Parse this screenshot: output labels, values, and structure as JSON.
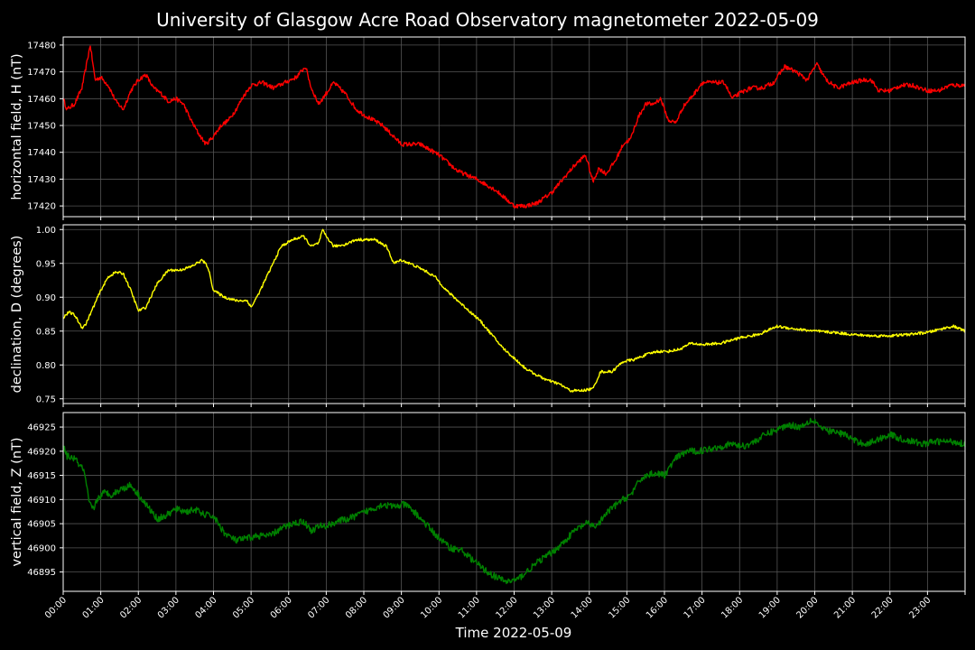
{
  "chart_data": {
    "type": "line",
    "title": "University of Glasgow Acre Road Observatory magnetometer 2022-05-09",
    "xlabel": "Time 2022-05-09",
    "x_unit": "hour",
    "xlim": [
      0,
      24
    ],
    "xticks": [
      "00:00",
      "01:00",
      "02:00",
      "03:00",
      "04:00",
      "05:00",
      "06:00",
      "07:00",
      "08:00",
      "09:00",
      "10:00",
      "11:00",
      "12:00",
      "13:00",
      "14:00",
      "15:00",
      "16:00",
      "17:00",
      "18:00",
      "19:00",
      "20:00",
      "21:00",
      "22:00",
      "23:00"
    ],
    "grid": true,
    "panels": [
      {
        "ylabel": "horizontal field, H (nT)",
        "color": "#ff0000",
        "ylim": [
          17416,
          17483
        ],
        "yticks": [
          17420,
          17430,
          17440,
          17450,
          17460,
          17470,
          17480
        ],
        "noise": 0.8,
        "x": [
          0,
          0.1,
          0.3,
          0.5,
          0.72,
          0.85,
          1.0,
          1.2,
          1.4,
          1.6,
          1.8,
          2.0,
          2.2,
          2.4,
          2.6,
          2.8,
          3.0,
          3.2,
          3.4,
          3.6,
          3.8,
          4.0,
          4.2,
          4.4,
          4.6,
          4.8,
          5.0,
          5.3,
          5.6,
          5.9,
          6.2,
          6.45,
          6.6,
          6.8,
          7.0,
          7.2,
          7.5,
          7.8,
          8.0,
          8.5,
          9.0,
          9.5,
          10.0,
          10.5,
          11.0,
          11.5,
          12.0,
          12.3,
          12.6,
          13.0,
          13.3,
          13.6,
          13.9,
          14.1,
          14.25,
          14.45,
          14.7,
          14.9,
          15.1,
          15.3,
          15.5,
          15.7,
          15.9,
          16.1,
          16.3,
          16.5,
          16.8,
          17.0,
          17.3,
          17.6,
          17.8,
          18.0,
          18.3,
          18.6,
          18.9,
          19.2,
          19.5,
          19.8,
          20.05,
          20.3,
          20.6,
          21.0,
          21.3,
          21.5,
          21.7,
          22.0,
          22.3,
          22.6,
          23.0,
          23.3,
          23.6,
          24.0
        ],
        "values": [
          17460,
          17456,
          17458,
          17464,
          17480,
          17467,
          17468,
          17465,
          17459,
          17456,
          17463,
          17467,
          17469,
          17464,
          17462,
          17459,
          17460,
          17458,
          17452,
          17447,
          17443,
          17446,
          17450,
          17452,
          17456,
          17461,
          17465,
          17466,
          17464,
          17466,
          17468,
          17472,
          17464,
          17458,
          17462,
          17466,
          17462,
          17456,
          17454,
          17450,
          17443,
          17443,
          17439,
          17433,
          17430,
          17426,
          17420,
          17420,
          17421,
          17425,
          17430,
          17435,
          17439,
          17429,
          17434,
          17432,
          17437,
          17443,
          17445,
          17453,
          17458,
          17458,
          17460,
          17452,
          17451,
          17457,
          17462,
          17466,
          17466,
          17466,
          17460,
          17462,
          17464,
          17464,
          17466,
          17472,
          17470,
          17467,
          17473,
          17467,
          17464,
          17466,
          17467,
          17467,
          17463,
          17463,
          17465,
          17465,
          17463,
          17463,
          17465,
          17465
        ]
      },
      {
        "ylabel": "declination, D (degrees)",
        "color": "#ffff00",
        "ylim": [
          0.743,
          1.007
        ],
        "yticks": [
          0.75,
          0.8,
          0.85,
          0.9,
          0.95,
          1.0
        ],
        "noise": 0.002,
        "x": [
          0,
          0.15,
          0.3,
          0.5,
          0.6,
          0.8,
          1.0,
          1.2,
          1.4,
          1.6,
          1.8,
          2.0,
          2.2,
          2.5,
          2.8,
          3.1,
          3.4,
          3.7,
          3.85,
          4.0,
          4.3,
          4.6,
          4.9,
          5.0,
          5.2,
          5.5,
          5.8,
          6.1,
          6.4,
          6.6,
          6.8,
          6.9,
          7.0,
          7.2,
          7.5,
          7.8,
          8.0,
          8.3,
          8.6,
          8.8,
          9.0,
          9.3,
          9.6,
          9.9,
          10.2,
          10.5,
          10.8,
          11.1,
          11.4,
          11.7,
          12.0,
          12.3,
          12.6,
          12.9,
          13.2,
          13.5,
          13.8,
          14.1,
          14.3,
          14.6,
          14.9,
          15.2,
          15.5,
          15.8,
          16.1,
          16.4,
          16.7,
          17.0,
          17.5,
          18.0,
          18.5,
          19.0,
          19.5,
          20.0,
          20.5,
          21.0,
          21.5,
          22.0,
          22.5,
          23.0,
          23.5,
          23.7,
          24.0
        ],
        "values": [
          0.87,
          0.878,
          0.874,
          0.855,
          0.86,
          0.885,
          0.91,
          0.93,
          0.937,
          0.935,
          0.91,
          0.88,
          0.885,
          0.92,
          0.94,
          0.94,
          0.945,
          0.955,
          0.945,
          0.91,
          0.9,
          0.895,
          0.895,
          0.885,
          0.905,
          0.94,
          0.975,
          0.985,
          0.99,
          0.975,
          0.98,
          0.999,
          0.99,
          0.975,
          0.978,
          0.985,
          0.985,
          0.985,
          0.975,
          0.95,
          0.955,
          0.948,
          0.94,
          0.93,
          0.91,
          0.895,
          0.88,
          0.865,
          0.845,
          0.825,
          0.81,
          0.795,
          0.785,
          0.777,
          0.772,
          0.762,
          0.762,
          0.765,
          0.79,
          0.79,
          0.805,
          0.808,
          0.815,
          0.82,
          0.82,
          0.823,
          0.832,
          0.83,
          0.832,
          0.84,
          0.845,
          0.857,
          0.853,
          0.85,
          0.848,
          0.845,
          0.843,
          0.843,
          0.845,
          0.848,
          0.855,
          0.857,
          0.85
        ]
      },
      {
        "ylabel": "vertical field, Z (nT)",
        "color": "#008000",
        "ylim": [
          46891,
          46928
        ],
        "yticks": [
          46895,
          46900,
          46905,
          46910,
          46915,
          46920,
          46925
        ],
        "noise": 0.7,
        "x": [
          0,
          0.1,
          0.3,
          0.55,
          0.7,
          0.8,
          0.9,
          1.1,
          1.3,
          1.5,
          1.8,
          2.0,
          2.3,
          2.5,
          2.7,
          3.0,
          3.3,
          3.5,
          3.7,
          4.0,
          4.3,
          4.6,
          4.9,
          5.2,
          5.5,
          5.8,
          6.1,
          6.4,
          6.6,
          6.8,
          7.0,
          7.3,
          7.6,
          7.9,
          8.2,
          8.5,
          8.8,
          9.1,
          9.4,
          9.7,
          10.0,
          10.3,
          10.6,
          10.9,
          11.2,
          11.5,
          11.8,
          12.1,
          12.4,
          12.7,
          13.0,
          13.3,
          13.6,
          13.9,
          14.2,
          14.5,
          14.8,
          15.1,
          15.4,
          15.7,
          16.0,
          16.3,
          16.6,
          16.9,
          17.2,
          17.5,
          17.8,
          18.1,
          18.4,
          18.7,
          19.0,
          19.3,
          19.6,
          19.9,
          20.05,
          20.2,
          20.5,
          20.8,
          21.1,
          21.4,
          21.7,
          22.0,
          22.3,
          22.6,
          22.9,
          23.2,
          23.5,
          23.7,
          24.0
        ],
        "values": [
          46921,
          46919,
          46918.5,
          46916,
          46909,
          46908,
          46910,
          46911.5,
          46911,
          46912,
          46913,
          46911,
          46908,
          46906,
          46906.5,
          46908,
          46907.5,
          46908,
          46907,
          46906.5,
          46903,
          46901.5,
          46902,
          46902.5,
          46902.5,
          46904,
          46905,
          46905.5,
          46903.5,
          46904.5,
          46904.5,
          46905.5,
          46906,
          46907,
          46908,
          46909,
          46908.5,
          46909,
          46907,
          46904.5,
          46902,
          46900,
          46899.5,
          46897.5,
          46895.5,
          46894,
          46893,
          46893.5,
          46895.5,
          46897.5,
          46899,
          46901,
          46903.5,
          46905,
          46904.5,
          46907.5,
          46909.5,
          46911,
          46914.5,
          46915.5,
          46915,
          46918.5,
          46920,
          46920,
          46920.5,
          46921,
          46921.5,
          46921,
          46922,
          46923.5,
          46924.5,
          46925.5,
          46925,
          46926.5,
          46926,
          46924.5,
          46924,
          46923.5,
          46922,
          46921.5,
          46922.5,
          46923.5,
          46922.5,
          46922,
          46921.5,
          46922,
          46922,
          46922,
          46921.5
        ]
      }
    ]
  }
}
